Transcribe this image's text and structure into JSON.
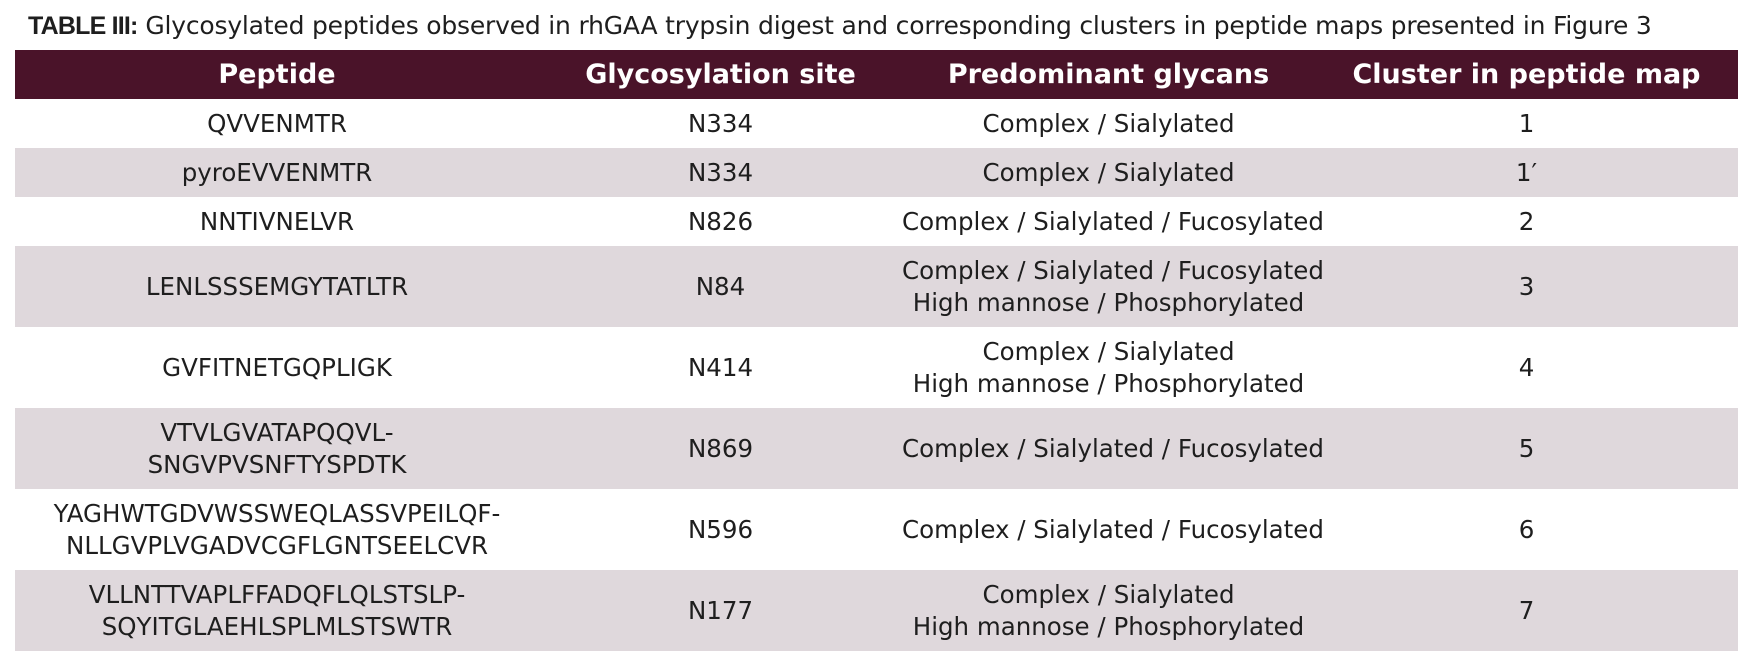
{
  "caption": {
    "label": "TABLE III:",
    "text": " Glycosylated peptides observed in rhGAA trypsin digest and corresponding clusters in peptide maps presented in Figure 3"
  },
  "colors": {
    "header_bg": "#4a1329",
    "header_text": "#ffffff",
    "stripe_bg": "#dfd8dc"
  },
  "table": {
    "headers": [
      "Peptide",
      "Glycosylation site",
      "Predominant glycans",
      "Cluster in peptide map"
    ],
    "rows": [
      {
        "peptide": [
          "QVVENMTR"
        ],
        "site": "N334",
        "glycans": [
          "Complex / Sialylated"
        ],
        "cluster": "1"
      },
      {
        "peptide": [
          "pyroEVVENMTR"
        ],
        "site": "N334",
        "glycans": [
          "Complex / Sialylated"
        ],
        "cluster": "1′"
      },
      {
        "peptide": [
          "NNTIVNELVR"
        ],
        "site": "N826",
        "glycans": [
          "Complex / Sialylated / Fucosylated"
        ],
        "cluster": "2"
      },
      {
        "peptide": [
          "LENLSSSEMGYTATLTR"
        ],
        "site": "N84",
        "glycans": [
          "Complex / Sialylated / Fucosylated",
          "High mannose / Phosphorylated"
        ],
        "cluster": "3"
      },
      {
        "peptide": [
          "GVFITNETGQPLIGK"
        ],
        "site": "N414",
        "glycans": [
          "Complex / Sialylated",
          "High mannose / Phosphorylated"
        ],
        "cluster": "4"
      },
      {
        "peptide": [
          "VTVLGVATAPQQVL-",
          "SNGVPVSNFTYSPDTK"
        ],
        "site": "N869",
        "glycans": [
          "Complex / Sialylated / Fucosylated"
        ],
        "cluster": "5"
      },
      {
        "peptide": [
          "YAGHWTGDVWSSWEQLASSVPEILQF-",
          "NLLGVPLVGADVCGFLGNTSEELCVR"
        ],
        "site": "N596",
        "glycans": [
          "Complex / Sialylated / Fucosylated"
        ],
        "cluster": "6"
      },
      {
        "peptide": [
          "VLLNTTVAPLFFADQFLQLSTSLP-",
          "SQYITGLAEHLSPLMLSTSWTR"
        ],
        "site": "N177",
        "glycans": [
          "Complex / Sialylated",
          "High mannose / Phosphorylated"
        ],
        "cluster": "7"
      }
    ]
  }
}
